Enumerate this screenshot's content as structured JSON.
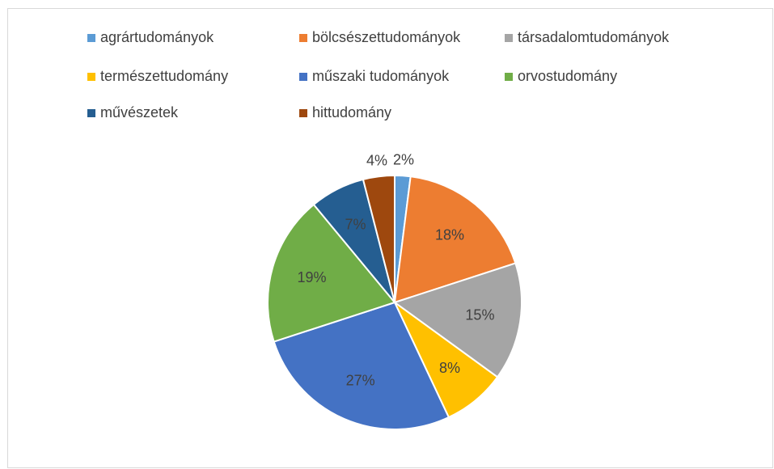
{
  "chart_data": {
    "type": "pie",
    "categories": [
      "agrártudományok",
      "bölcsészettudományok",
      "társadalomtudományok",
      "természettudomány",
      "műszaki tudományok",
      "orvostudomány",
      "művészetek",
      "hittudomány"
    ],
    "values": [
      2,
      18,
      15,
      8,
      27,
      19,
      7,
      4
    ],
    "value_labels": [
      "2%",
      "18%",
      "15%",
      "8%",
      "27%",
      "19%",
      "7%",
      "4%"
    ],
    "colors": [
      "#5b9bd5",
      "#ed7d31",
      "#a5a5a5",
      "#ffc000",
      "#4472c4",
      "#70ad47",
      "#255e91",
      "#9e480e"
    ],
    "legend": "top"
  }
}
